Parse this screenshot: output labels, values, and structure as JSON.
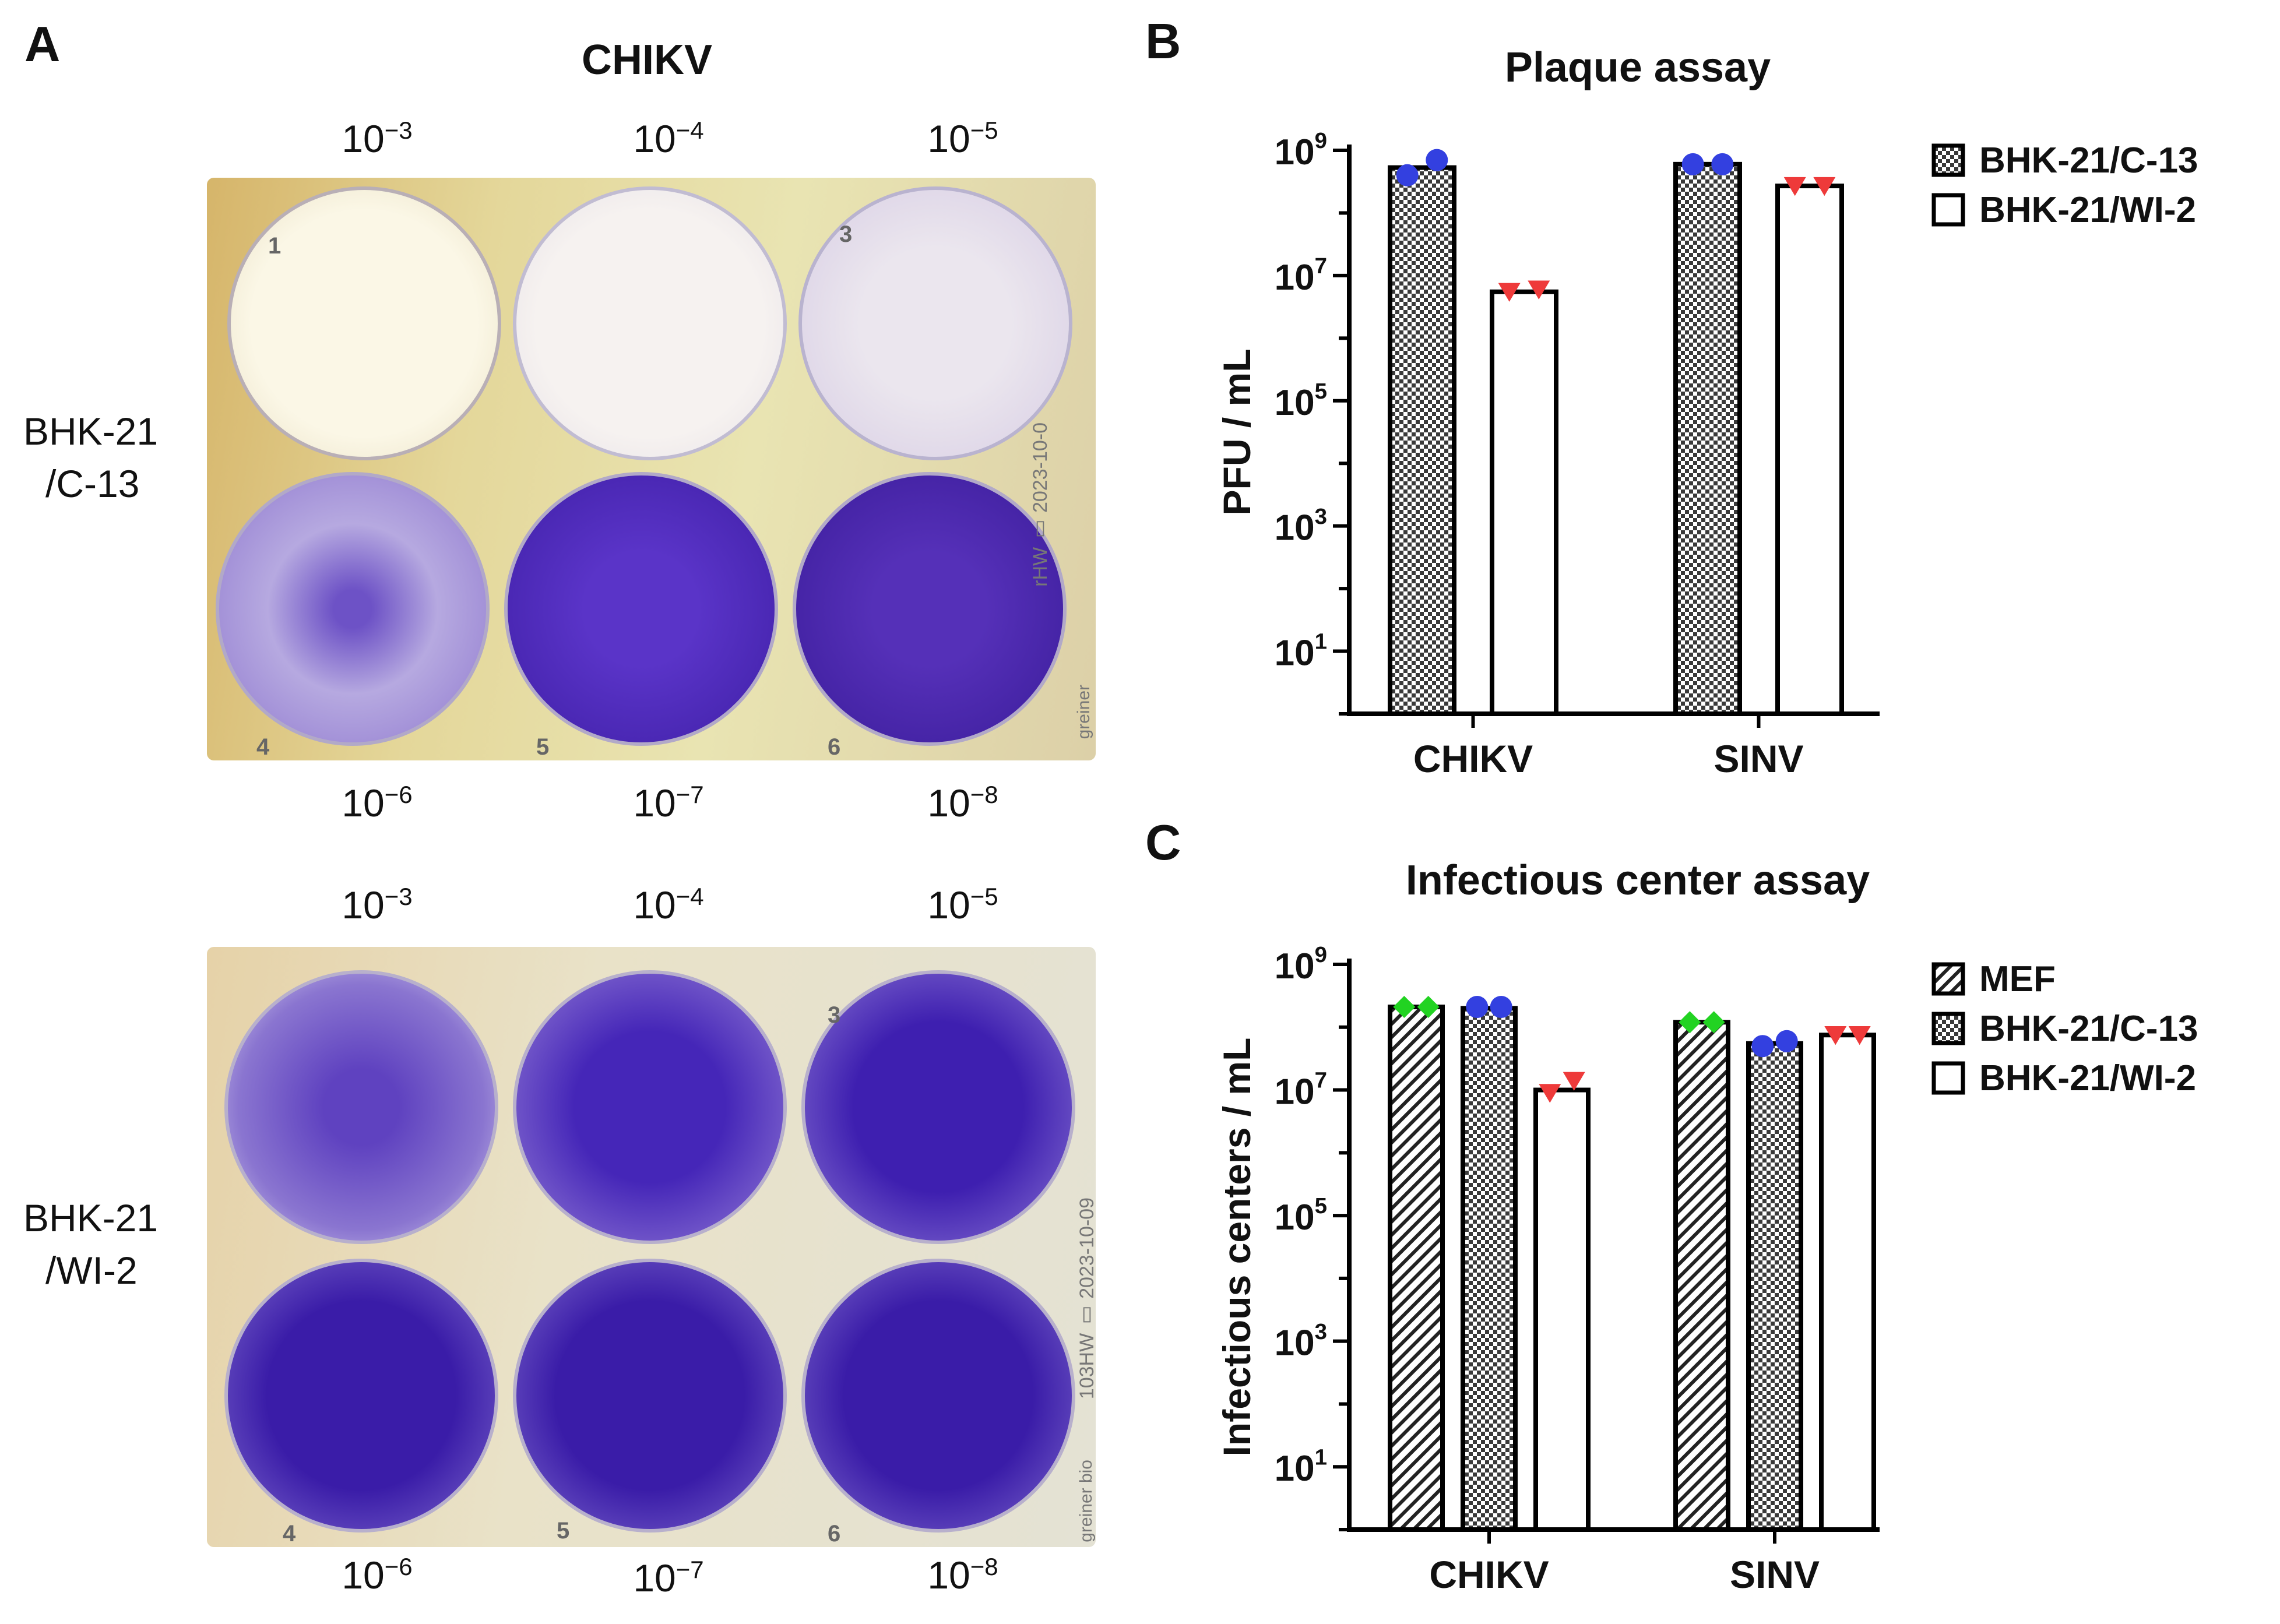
{
  "panel_a": {
    "letter": "A",
    "title": "CHIKV",
    "plate_top": {
      "row_label_1": "BHK-21",
      "row_label_2": "/C-13",
      "dilutions_top": [
        {
          "base": "10",
          "exp": "−3"
        },
        {
          "base": "10",
          "exp": "−4"
        },
        {
          "base": "10",
          "exp": "−5"
        }
      ],
      "dilutions_bottom": [
        {
          "base": "10",
          "exp": "−6"
        },
        {
          "base": "10",
          "exp": "−7"
        },
        {
          "base": "10",
          "exp": "−8"
        }
      ],
      "well_numbers": [
        "1",
        "3",
        "4",
        "5",
        "6"
      ],
      "stamp": "rHW ▯ 2023-10-0",
      "brand": "greiner"
    },
    "plate_bottom": {
      "row_label_1": "BHK-21",
      "row_label_2": "/WI-2",
      "dilutions_top": [
        {
          "base": "10",
          "exp": "−3"
        },
        {
          "base": "10",
          "exp": "−4"
        },
        {
          "base": "10",
          "exp": "−5"
        }
      ],
      "dilutions_bottom": [
        {
          "base": "10",
          "exp": "−6"
        },
        {
          "base": "10",
          "exp": "−7"
        },
        {
          "base": "10",
          "exp": "−8"
        }
      ],
      "well_numbers": [
        "3",
        "4",
        "5",
        "6"
      ],
      "stamp": "103HW ▯ 2023-10-09",
      "brand": "greiner bio"
    }
  },
  "colors": {
    "stain": "#4b2ab0",
    "stain_dark": "#2e1590",
    "circle": "#3340e0",
    "triangle": "#ee3a3a",
    "diamond": "#22d322"
  },
  "chart_data": [
    {
      "letter": "B",
      "type": "bar",
      "title": "Plaque assay",
      "ylabel": "PFU / mL",
      "yscale": "log",
      "ylim": [
        1,
        1000000000
      ],
      "yticks": [
        {
          "base": "10",
          "exp": "9"
        },
        {
          "base": "10",
          "exp": "7"
        },
        {
          "base": "10",
          "exp": "5"
        },
        {
          "base": "10",
          "exp": "3"
        },
        {
          "base": "10",
          "exp": "1"
        }
      ],
      "categories": [
        "CHIKV",
        "SINV"
      ],
      "legend_position": "top-right",
      "series": [
        {
          "name": "BHK-21/C-13",
          "pattern": "crosshatch",
          "marker": "circle",
          "values": [
            530000000,
            600000000
          ],
          "points": [
            [
              400000000,
              700000000
            ],
            [
              600000000,
              600000000
            ]
          ]
        },
        {
          "name": "BHK-21/WI-2",
          "pattern": "open",
          "marker": "triangle",
          "values": [
            5500000,
            270000000
          ],
          "points": [
            [
              5500000,
              6000000
            ],
            [
              270000000,
              270000000
            ]
          ]
        }
      ]
    },
    {
      "letter": "C",
      "type": "bar",
      "title": "Infectious center assay",
      "ylabel": "Infectious centers / mL",
      "yscale": "log",
      "ylim": [
        1,
        1000000000
      ],
      "yticks": [
        {
          "base": "10",
          "exp": "9"
        },
        {
          "base": "10",
          "exp": "7"
        },
        {
          "base": "10",
          "exp": "5"
        },
        {
          "base": "10",
          "exp": "3"
        },
        {
          "base": "10",
          "exp": "1"
        }
      ],
      "categories": [
        "CHIKV",
        "SINV"
      ],
      "legend_position": "top-right",
      "series": [
        {
          "name": "MEF",
          "pattern": "diagonal",
          "marker": "diamond",
          "values": [
            210000000,
            120000000
          ],
          "points": [
            [
              210000000,
              210000000
            ],
            [
              120000000,
              120000000
            ]
          ]
        },
        {
          "name": "BHK-21/C-13",
          "pattern": "crosshatch",
          "marker": "circle",
          "values": [
            200000000,
            55000000
          ],
          "points": [
            [
              210000000,
              210000000
            ],
            [
              50000000,
              60000000
            ]
          ]
        },
        {
          "name": "BHK-21/WI-2",
          "pattern": "open",
          "marker": "triangle",
          "values": [
            10000000,
            75000000
          ],
          "points": [
            [
              9000000,
              14000000
            ],
            [
              75000000,
              75000000
            ]
          ]
        }
      ]
    }
  ]
}
